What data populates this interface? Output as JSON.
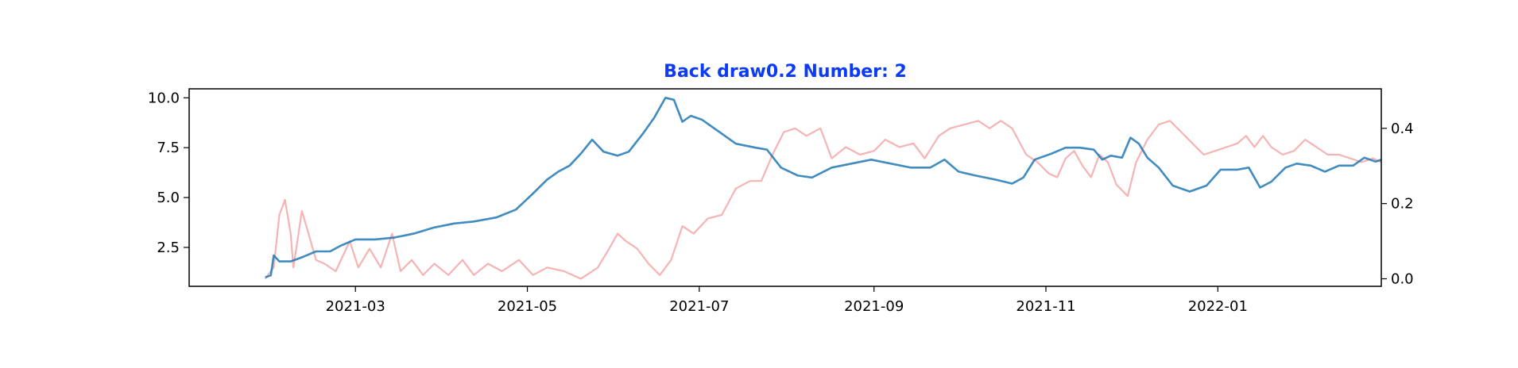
{
  "chart_data": {
    "type": "line",
    "title": "Back draw0.2 Number: 2",
    "title_color": "#0d3bf5",
    "xlabel": "",
    "ylabel": "",
    "ylabel_right": "",
    "grid": false,
    "legend": "none",
    "x_range": [
      "2021-01-01",
      "2022-02-28"
    ],
    "x_ticks": [
      "2021-03-01",
      "2021-05-01",
      "2021-07-01",
      "2021-09-01",
      "2021-11-01",
      "2022-01-01"
    ],
    "x_tick_labels": [
      "2021-03",
      "2021-05",
      "2021-07",
      "2021-09",
      "2021-11",
      "2022-01"
    ],
    "y_left_range": [
      0.55,
      10.45
    ],
    "y_left_ticks": [
      2.5,
      5.0,
      7.5,
      10.0
    ],
    "y_left_tick_labels": [
      "2.5",
      "5.0",
      "7.5",
      "10.0"
    ],
    "y_right_range": [
      -0.02,
      0.505
    ],
    "y_right_ticks": [
      0.0,
      0.2,
      0.4
    ],
    "y_right_tick_labels": [
      "0.0",
      "0.2",
      "0.4"
    ],
    "series": [
      {
        "axis": "left",
        "color": "#1f77b4",
        "points": [
          [
            "2021-01-28",
            1.0
          ],
          [
            "2021-01-30",
            1.1
          ],
          [
            "2021-01-31",
            2.1
          ],
          [
            "2021-02-02",
            1.8
          ],
          [
            "2021-02-06",
            1.8
          ],
          [
            "2021-02-10",
            2.0
          ],
          [
            "2021-02-15",
            2.3
          ],
          [
            "2021-02-20",
            2.3
          ],
          [
            "2021-02-24",
            2.6
          ],
          [
            "2021-03-01",
            2.9
          ],
          [
            "2021-03-08",
            2.9
          ],
          [
            "2021-03-15",
            3.0
          ],
          [
            "2021-03-22",
            3.2
          ],
          [
            "2021-03-29",
            3.5
          ],
          [
            "2021-04-05",
            3.7
          ],
          [
            "2021-04-12",
            3.8
          ],
          [
            "2021-04-20",
            4.0
          ],
          [
            "2021-04-27",
            4.4
          ],
          [
            "2021-05-03",
            5.2
          ],
          [
            "2021-05-08",
            5.9
          ],
          [
            "2021-05-12",
            6.3
          ],
          [
            "2021-05-16",
            6.6
          ],
          [
            "2021-05-20",
            7.2
          ],
          [
            "2021-05-24",
            7.9
          ],
          [
            "2021-05-28",
            7.3
          ],
          [
            "2021-06-02",
            7.1
          ],
          [
            "2021-06-06",
            7.3
          ],
          [
            "2021-06-11",
            8.2
          ],
          [
            "2021-06-15",
            9.0
          ],
          [
            "2021-06-19",
            10.0
          ],
          [
            "2021-06-22",
            9.9
          ],
          [
            "2021-06-25",
            8.8
          ],
          [
            "2021-06-28",
            9.1
          ],
          [
            "2021-07-02",
            8.9
          ],
          [
            "2021-07-08",
            8.3
          ],
          [
            "2021-07-14",
            7.7
          ],
          [
            "2021-07-21",
            7.5
          ],
          [
            "2021-07-25",
            7.4
          ],
          [
            "2021-07-30",
            6.5
          ],
          [
            "2021-08-05",
            6.1
          ],
          [
            "2021-08-10",
            6.0
          ],
          [
            "2021-08-17",
            6.5
          ],
          [
            "2021-08-24",
            6.7
          ],
          [
            "2021-08-31",
            6.9
          ],
          [
            "2021-09-07",
            6.7
          ],
          [
            "2021-09-14",
            6.5
          ],
          [
            "2021-09-21",
            6.5
          ],
          [
            "2021-09-26",
            6.9
          ],
          [
            "2021-10-01",
            6.3
          ],
          [
            "2021-10-07",
            6.1
          ],
          [
            "2021-10-14",
            5.9
          ],
          [
            "2021-10-20",
            5.7
          ],
          [
            "2021-10-24",
            6.0
          ],
          [
            "2021-10-28",
            6.9
          ],
          [
            "2021-11-03",
            7.2
          ],
          [
            "2021-11-08",
            7.5
          ],
          [
            "2021-11-13",
            7.5
          ],
          [
            "2021-11-18",
            7.4
          ],
          [
            "2021-11-21",
            6.9
          ],
          [
            "2021-11-24",
            7.1
          ],
          [
            "2021-11-28",
            7.0
          ],
          [
            "2021-12-01",
            8.0
          ],
          [
            "2021-12-04",
            7.7
          ],
          [
            "2021-12-07",
            7.0
          ],
          [
            "2021-12-11",
            6.5
          ],
          [
            "2021-12-16",
            5.6
          ],
          [
            "2021-12-22",
            5.3
          ],
          [
            "2021-12-28",
            5.6
          ],
          [
            "2022-01-02",
            6.4
          ],
          [
            "2022-01-08",
            6.4
          ],
          [
            "2022-01-12",
            6.5
          ],
          [
            "2022-01-16",
            5.5
          ],
          [
            "2022-01-20",
            5.8
          ],
          [
            "2022-01-25",
            6.5
          ],
          [
            "2022-01-29",
            6.7
          ],
          [
            "2022-02-03",
            6.6
          ],
          [
            "2022-02-08",
            6.3
          ],
          [
            "2022-02-13",
            6.6
          ],
          [
            "2022-02-18",
            6.6
          ],
          [
            "2022-02-22",
            7.0
          ],
          [
            "2022-02-26",
            6.8
          ],
          [
            "2022-02-28",
            6.9
          ]
        ]
      },
      {
        "axis": "right",
        "color": "#f08080",
        "points": [
          [
            "2021-01-28",
            0.0
          ],
          [
            "2021-01-31",
            0.03
          ],
          [
            "2021-02-02",
            0.17
          ],
          [
            "2021-02-04",
            0.21
          ],
          [
            "2021-02-06",
            0.12
          ],
          [
            "2021-02-07",
            0.03
          ],
          [
            "2021-02-10",
            0.18
          ],
          [
            "2021-02-12",
            0.13
          ],
          [
            "2021-02-15",
            0.05
          ],
          [
            "2021-02-18",
            0.04
          ],
          [
            "2021-02-22",
            0.02
          ],
          [
            "2021-02-27",
            0.1
          ],
          [
            "2021-03-02",
            0.03
          ],
          [
            "2021-03-06",
            0.08
          ],
          [
            "2021-03-10",
            0.03
          ],
          [
            "2021-03-14",
            0.12
          ],
          [
            "2021-03-17",
            0.02
          ],
          [
            "2021-03-21",
            0.05
          ],
          [
            "2021-03-25",
            0.01
          ],
          [
            "2021-03-29",
            0.04
          ],
          [
            "2021-04-03",
            0.01
          ],
          [
            "2021-04-08",
            0.05
          ],
          [
            "2021-04-12",
            0.01
          ],
          [
            "2021-04-17",
            0.04
          ],
          [
            "2021-04-22",
            0.02
          ],
          [
            "2021-04-28",
            0.05
          ],
          [
            "2021-05-03",
            0.01
          ],
          [
            "2021-05-08",
            0.03
          ],
          [
            "2021-05-14",
            0.02
          ],
          [
            "2021-05-20",
            0.0
          ],
          [
            "2021-05-26",
            0.03
          ],
          [
            "2021-05-30",
            0.08
          ],
          [
            "2021-06-02",
            0.12
          ],
          [
            "2021-06-05",
            0.1
          ],
          [
            "2021-06-09",
            0.08
          ],
          [
            "2021-06-13",
            0.04
          ],
          [
            "2021-06-17",
            0.01
          ],
          [
            "2021-06-21",
            0.05
          ],
          [
            "2021-06-25",
            0.14
          ],
          [
            "2021-06-29",
            0.12
          ],
          [
            "2021-07-04",
            0.16
          ],
          [
            "2021-07-09",
            0.17
          ],
          [
            "2021-07-14",
            0.24
          ],
          [
            "2021-07-19",
            0.26
          ],
          [
            "2021-07-23",
            0.26
          ],
          [
            "2021-07-27",
            0.33
          ],
          [
            "2021-07-31",
            0.39
          ],
          [
            "2021-08-04",
            0.4
          ],
          [
            "2021-08-08",
            0.38
          ],
          [
            "2021-08-13",
            0.4
          ],
          [
            "2021-08-17",
            0.32
          ],
          [
            "2021-08-22",
            0.35
          ],
          [
            "2021-08-27",
            0.33
          ],
          [
            "2021-09-01",
            0.34
          ],
          [
            "2021-09-05",
            0.37
          ],
          [
            "2021-09-10",
            0.35
          ],
          [
            "2021-09-15",
            0.36
          ],
          [
            "2021-09-19",
            0.32
          ],
          [
            "2021-09-24",
            0.38
          ],
          [
            "2021-09-28",
            0.4
          ],
          [
            "2021-10-03",
            0.41
          ],
          [
            "2021-10-08",
            0.42
          ],
          [
            "2021-10-12",
            0.4
          ],
          [
            "2021-10-16",
            0.42
          ],
          [
            "2021-10-20",
            0.4
          ],
          [
            "2021-10-25",
            0.33
          ],
          [
            "2021-10-29",
            0.31
          ],
          [
            "2021-11-02",
            0.28
          ],
          [
            "2021-11-05",
            0.27
          ],
          [
            "2021-11-08",
            0.32
          ],
          [
            "2021-11-11",
            0.34
          ],
          [
            "2021-11-14",
            0.3
          ],
          [
            "2021-11-17",
            0.27
          ],
          [
            "2021-11-20",
            0.33
          ],
          [
            "2021-11-23",
            0.31
          ],
          [
            "2021-11-26",
            0.25
          ],
          [
            "2021-11-30",
            0.22
          ],
          [
            "2021-12-03",
            0.31
          ],
          [
            "2021-12-07",
            0.37
          ],
          [
            "2021-12-11",
            0.41
          ],
          [
            "2021-12-15",
            0.42
          ],
          [
            "2021-12-19",
            0.39
          ],
          [
            "2021-12-23",
            0.36
          ],
          [
            "2021-12-27",
            0.33
          ],
          [
            "2021-12-31",
            0.34
          ],
          [
            "2022-01-04",
            0.35
          ],
          [
            "2022-01-08",
            0.36
          ],
          [
            "2022-01-11",
            0.38
          ],
          [
            "2022-01-14",
            0.35
          ],
          [
            "2022-01-17",
            0.38
          ],
          [
            "2022-01-20",
            0.35
          ],
          [
            "2022-01-24",
            0.33
          ],
          [
            "2022-01-28",
            0.34
          ],
          [
            "2022-02-01",
            0.37
          ],
          [
            "2022-02-05",
            0.35
          ],
          [
            "2022-02-09",
            0.33
          ],
          [
            "2022-02-13",
            0.33
          ],
          [
            "2022-02-17",
            0.32
          ],
          [
            "2022-02-21",
            0.31
          ],
          [
            "2022-02-25",
            0.32
          ],
          [
            "2022-02-28",
            0.31
          ]
        ]
      }
    ]
  }
}
